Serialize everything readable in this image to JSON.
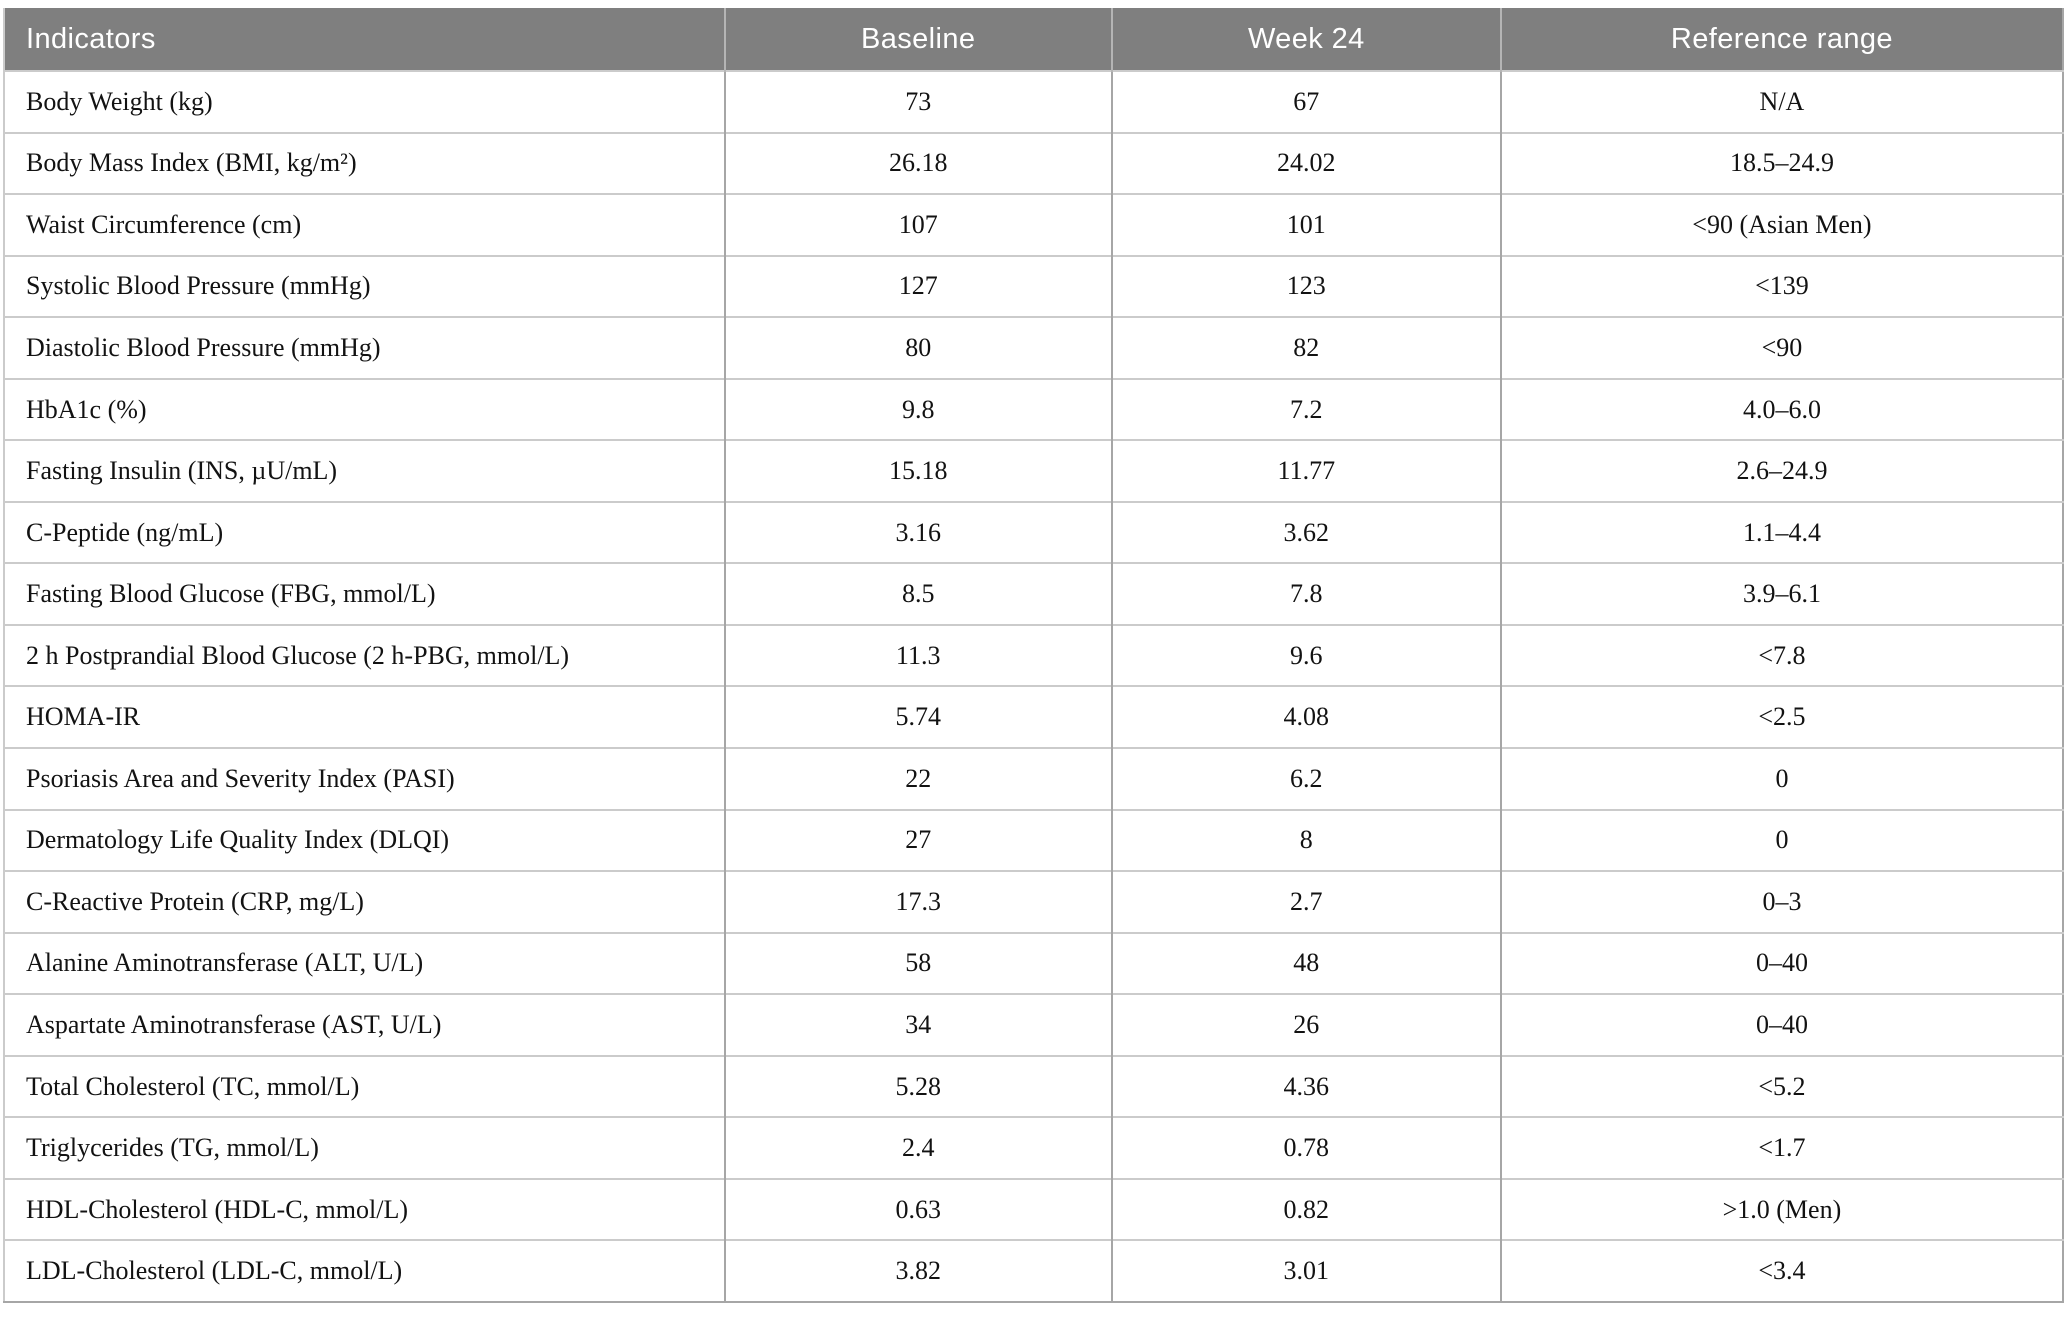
{
  "table": {
    "columns": [
      "Indicators",
      "Baseline",
      "Week 24",
      "Reference range"
    ],
    "rows": [
      {
        "indicator": "Body Weight (kg)",
        "baseline": "73",
        "week24": "67",
        "reference": "N/A"
      },
      {
        "indicator": "Body Mass Index (BMI, kg/m²)",
        "baseline": "26.18",
        "week24": "24.02",
        "reference": "18.5–24.9"
      },
      {
        "indicator": "Waist Circumference (cm)",
        "baseline": "107",
        "week24": "101",
        "reference": "<90 (Asian Men)"
      },
      {
        "indicator": "Systolic Blood Pressure (mmHg)",
        "baseline": "127",
        "week24": "123",
        "reference": "<139"
      },
      {
        "indicator": "Diastolic Blood Pressure (mmHg)",
        "baseline": "80",
        "week24": "82",
        "reference": "<90"
      },
      {
        "indicator": "HbA1c (%)",
        "baseline": "9.8",
        "week24": "7.2",
        "reference": "4.0–6.0"
      },
      {
        "indicator": "Fasting Insulin (INS, µU/mL)",
        "baseline": "15.18",
        "week24": "11.77",
        "reference": "2.6–24.9"
      },
      {
        "indicator": "C-Peptide (ng/mL)",
        "baseline": "3.16",
        "week24": "3.62",
        "reference": "1.1–4.4"
      },
      {
        "indicator": "Fasting Blood Glucose (FBG, mmol/L)",
        "baseline": "8.5",
        "week24": "7.8",
        "reference": "3.9–6.1"
      },
      {
        "indicator": "2 h Postprandial Blood Glucose (2 h-PBG, mmol/L)",
        "baseline": "11.3",
        "week24": "9.6",
        "reference": "<7.8"
      },
      {
        "indicator": "HOMA-IR",
        "baseline": "5.74",
        "week24": "4.08",
        "reference": "<2.5"
      },
      {
        "indicator": "Psoriasis Area and Severity Index (PASI)",
        "baseline": "22",
        "week24": "6.2",
        "reference": "0"
      },
      {
        "indicator": "Dermatology Life Quality Index (DLQI)",
        "baseline": "27",
        "week24": "8",
        "reference": "0"
      },
      {
        "indicator": "C-Reactive Protein (CRP, mg/L)",
        "baseline": "17.3",
        "week24": "2.7",
        "reference": "0–3"
      },
      {
        "indicator": "Alanine Aminotransferase (ALT, U/L)",
        "baseline": "58",
        "week24": "48",
        "reference": "0–40"
      },
      {
        "indicator": "Aspartate Aminotransferase (AST, U/L)",
        "baseline": "34",
        "week24": "26",
        "reference": "0–40"
      },
      {
        "indicator": "Total Cholesterol (TC, mmol/L)",
        "baseline": "5.28",
        "week24": "4.36",
        "reference": "<5.2"
      },
      {
        "indicator": "Triglycerides (TG, mmol/L)",
        "baseline": "2.4",
        "week24": "0.78",
        "reference": "<1.7"
      },
      {
        "indicator": "HDL-Cholesterol (HDL-C, mmol/L)",
        "baseline": "0.63",
        "week24": "0.82",
        "reference": ">1.0 (Men)"
      },
      {
        "indicator": "LDL-Cholesterol (LDL-C, mmol/L)",
        "baseline": "3.82",
        "week24": "3.01",
        "reference": "<3.4"
      }
    ]
  },
  "colors": {
    "header_bg": "#7f7f7f",
    "header_text": "#ffffff",
    "header_separator": "#b5b5b5",
    "row_border": "#cbcbcb",
    "column_border": "#a6a6a6",
    "body_text": "#121212",
    "page_bg": "#ffffff"
  }
}
